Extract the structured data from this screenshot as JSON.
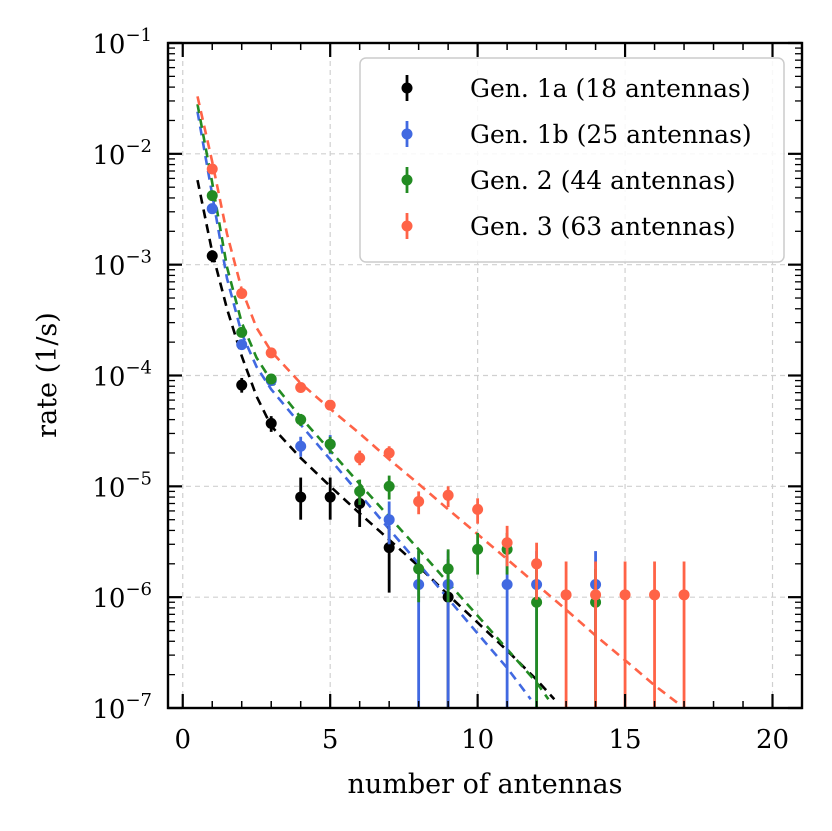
{
  "chart_data": {
    "type": "scatter",
    "title": "",
    "xlabel": "number of antennas",
    "ylabel": "rate (1/s)",
    "xlim": [
      -0.5,
      21
    ],
    "ylim": [
      1e-07,
      0.1
    ],
    "yscale": "log",
    "grid": true,
    "legend_position": "top-right",
    "xticks": [
      0,
      5,
      10,
      15,
      20
    ],
    "xtick_labels": [
      "0",
      "5",
      "10",
      "15",
      "20"
    ],
    "yticks": [
      1e-07,
      1e-06,
      1e-05,
      0.0001,
      0.001,
      0.01,
      0.1
    ],
    "ytick_labels": [
      {
        "base": "10",
        "exp": "−7"
      },
      {
        "base": "10",
        "exp": "−6"
      },
      {
        "base": "10",
        "exp": "−5"
      },
      {
        "base": "10",
        "exp": "−4"
      },
      {
        "base": "10",
        "exp": "−3"
      },
      {
        "base": "10",
        "exp": "−2"
      },
      {
        "base": "10",
        "exp": "−1"
      }
    ],
    "series": [
      {
        "name": "Gen. 1a (18 antennas)",
        "color": "#000000",
        "points": [
          {
            "x": 1,
            "y": 0.0012,
            "lo": 0.00105,
            "hi": 0.00135
          },
          {
            "x": 2,
            "y": 8.2e-05,
            "lo": 7e-05,
            "hi": 9.5e-05
          },
          {
            "x": 3,
            "y": 3.7e-05,
            "lo": 3.1e-05,
            "hi": 4.3e-05
          },
          {
            "x": 4,
            "y": 8e-06,
            "lo": 5e-06,
            "hi": 1.2e-05
          },
          {
            "x": 5,
            "y": 8e-06,
            "lo": 5e-06,
            "hi": 1.2e-05
          },
          {
            "x": 6,
            "y": 7e-06,
            "lo": 4.3e-06,
            "hi": 1e-05
          },
          {
            "x": 7,
            "y": 2.8e-06,
            "lo": 1.1e-06,
            "hi": 4.4e-06
          },
          {
            "x": 9,
            "y": 1e-06,
            "lo": 1e-07,
            "hi": 2.2e-06
          }
        ],
        "fit": [
          {
            "x": 0.5,
            "y": 0.0058
          },
          {
            "x": 1,
            "y": 0.0013
          },
          {
            "x": 1.5,
            "y": 0.0004
          },
          {
            "x": 2,
            "y": 0.00015
          },
          {
            "x": 2.5,
            "y": 6.5e-05
          },
          {
            "x": 3,
            "y": 3.5e-05
          },
          {
            "x": 4,
            "y": 1.8e-05
          },
          {
            "x": 5,
            "y": 1e-05
          },
          {
            "x": 6,
            "y": 5.7e-06
          },
          {
            "x": 7,
            "y": 3.3e-06
          },
          {
            "x": 8,
            "y": 1.9e-06
          },
          {
            "x": 9,
            "y": 1.05e-06
          },
          {
            "x": 10,
            "y": 5.9e-07
          },
          {
            "x": 11,
            "y": 3.3e-07
          },
          {
            "x": 12,
            "y": 1.8e-07
          },
          {
            "x": 12.6,
            "y": 1.2e-07
          }
        ]
      },
      {
        "name": "Gen. 1b (25 antennas)",
        "color": "#4169e1",
        "points": [
          {
            "x": 1,
            "y": 0.0032,
            "lo": 0.0029,
            "hi": 0.0035
          },
          {
            "x": 2,
            "y": 0.00019,
            "lo": 0.000175,
            "hi": 0.000205
          },
          {
            "x": 3,
            "y": 9e-05,
            "lo": 8.2e-05,
            "hi": 9.8e-05
          },
          {
            "x": 4,
            "y": 2.3e-05,
            "lo": 1.85e-05,
            "hi": 2.8e-05
          },
          {
            "x": 5,
            "y": 2.4e-05,
            "lo": 1.95e-05,
            "hi": 2.9e-05
          },
          {
            "x": 7,
            "y": 5e-06,
            "lo": 3e-06,
            "hi": 7.3e-06
          },
          {
            "x": 8,
            "y": 1.3e-06,
            "lo": 1e-07,
            "hi": 2.6e-06
          },
          {
            "x": 9,
            "y": 1.3e-06,
            "lo": 1e-07,
            "hi": 2.6e-06
          },
          {
            "x": 11,
            "y": 1.3e-06,
            "lo": 1e-07,
            "hi": 2.6e-06
          },
          {
            "x": 12,
            "y": 1.3e-06,
            "lo": 1e-07,
            "hi": 2.6e-06
          },
          {
            "x": 14,
            "y": 1.3e-06,
            "lo": 1e-07,
            "hi": 2.6e-06
          }
        ],
        "fit": [
          {
            "x": 0.5,
            "y": 0.024
          },
          {
            "x": 1,
            "y": 0.0043
          },
          {
            "x": 1.5,
            "y": 0.00075
          },
          {
            "x": 2,
            "y": 0.00024
          },
          {
            "x": 2.5,
            "y": 0.00012
          },
          {
            "x": 3,
            "y": 7.5e-05
          },
          {
            "x": 4,
            "y": 3.6e-05
          },
          {
            "x": 5,
            "y": 1.75e-05
          },
          {
            "x": 6,
            "y": 8.5e-06
          },
          {
            "x": 7,
            "y": 4.1e-06
          },
          {
            "x": 8,
            "y": 2e-06
          },
          {
            "x": 9,
            "y": 9.7e-07
          },
          {
            "x": 10,
            "y": 4.7e-07
          },
          {
            "x": 11,
            "y": 2.3e-07
          },
          {
            "x": 11.8,
            "y": 1.2e-07
          }
        ]
      },
      {
        "name": "Gen. 2 (44 antennas)",
        "color": "#228b22",
        "points": [
          {
            "x": 1,
            "y": 0.0042,
            "lo": 0.0039,
            "hi": 0.0045
          },
          {
            "x": 2,
            "y": 0.000245,
            "lo": 0.00023,
            "hi": 0.00026
          },
          {
            "x": 3,
            "y": 9.3e-05,
            "lo": 8.6e-05,
            "hi": 0.0001
          },
          {
            "x": 4,
            "y": 4e-05,
            "lo": 3.5e-05,
            "hi": 4.5e-05
          },
          {
            "x": 5,
            "y": 2.4e-05,
            "lo": 2e-05,
            "hi": 2.8e-05
          },
          {
            "x": 6,
            "y": 9e-06,
            "lo": 6.8e-06,
            "hi": 1.15e-05
          },
          {
            "x": 7,
            "y": 1e-05,
            "lo": 7.6e-06,
            "hi": 1.25e-05
          },
          {
            "x": 8,
            "y": 1.8e-06,
            "lo": 9e-07,
            "hi": 2.7e-06
          },
          {
            "x": 9,
            "y": 1.8e-06,
            "lo": 9e-07,
            "hi": 2.7e-06
          },
          {
            "x": 10,
            "y": 2.7e-06,
            "lo": 1.6e-06,
            "hi": 3.8e-06
          },
          {
            "x": 11,
            "y": 2.7e-06,
            "lo": 1.6e-06,
            "hi": 3.8e-06
          },
          {
            "x": 12,
            "y": 9e-07,
            "lo": 1e-07,
            "hi": 1.8e-06
          },
          {
            "x": 14,
            "y": 9e-07,
            "lo": 1e-07,
            "hi": 1.8e-06
          }
        ],
        "fit": [
          {
            "x": 0.5,
            "y": 0.028
          },
          {
            "x": 1,
            "y": 0.0055
          },
          {
            "x": 1.5,
            "y": 0.00095
          },
          {
            "x": 2,
            "y": 0.0003
          },
          {
            "x": 2.5,
            "y": 0.000145
          },
          {
            "x": 3,
            "y": 9e-05
          },
          {
            "x": 4,
            "y": 4.2e-05
          },
          {
            "x": 5,
            "y": 2.1e-05
          },
          {
            "x": 6,
            "y": 1.05e-05
          },
          {
            "x": 7,
            "y": 5.3e-06
          },
          {
            "x": 8,
            "y": 2.7e-06
          },
          {
            "x": 9,
            "y": 1.35e-06
          },
          {
            "x": 10,
            "y": 6.8e-07
          },
          {
            "x": 11,
            "y": 3.4e-07
          },
          {
            "x": 12,
            "y": 1.7e-07
          },
          {
            "x": 12.4,
            "y": 1.2e-07
          }
        ]
      },
      {
        "name": "Gen. 3 (63 antennas)",
        "color": "#ff6347",
        "points": [
          {
            "x": 1,
            "y": 0.0073,
            "lo": 0.0069,
            "hi": 0.0077
          },
          {
            "x": 2,
            "y": 0.00055,
            "lo": 0.00053,
            "hi": 0.00057
          },
          {
            "x": 3,
            "y": 0.00016,
            "lo": 0.000152,
            "hi": 0.000168
          },
          {
            "x": 4,
            "y": 7.8e-05,
            "lo": 7.3e-05,
            "hi": 8.3e-05
          },
          {
            "x": 5,
            "y": 5.4e-05,
            "lo": 5e-05,
            "hi": 5.8e-05
          },
          {
            "x": 6,
            "y": 1.8e-05,
            "lo": 1.55e-05,
            "hi": 2.1e-05
          },
          {
            "x": 7,
            "y": 2e-05,
            "lo": 1.75e-05,
            "hi": 2.3e-05
          },
          {
            "x": 8,
            "y": 7.3e-06,
            "lo": 5.6e-06,
            "hi": 9e-06
          },
          {
            "x": 9,
            "y": 8.3e-06,
            "lo": 6.5e-06,
            "hi": 1e-05
          },
          {
            "x": 10,
            "y": 6.2e-06,
            "lo": 4.6e-06,
            "hi": 7.8e-06
          },
          {
            "x": 11,
            "y": 3.1e-06,
            "lo": 1.9e-06,
            "hi": 4.4e-06
          },
          {
            "x": 12,
            "y": 2e-06,
            "lo": 9.5e-07,
            "hi": 3.1e-06
          },
          {
            "x": 13,
            "y": 1.05e-06,
            "lo": 1e-07,
            "hi": 2.1e-06
          },
          {
            "x": 14,
            "y": 1.05e-06,
            "lo": 1e-07,
            "hi": 2.1e-06
          },
          {
            "x": 15,
            "y": 1.05e-06,
            "lo": 1e-07,
            "hi": 2.1e-06
          },
          {
            "x": 16,
            "y": 1.05e-06,
            "lo": 1e-07,
            "hi": 2.1e-06
          },
          {
            "x": 17,
            "y": 1.05e-06,
            "lo": 1e-07,
            "hi": 2.1e-06
          }
        ],
        "fit": [
          {
            "x": 0.5,
            "y": 0.033
          },
          {
            "x": 1,
            "y": 0.0085
          },
          {
            "x": 1.5,
            "y": 0.0019
          },
          {
            "x": 2,
            "y": 0.0006
          },
          {
            "x": 2.5,
            "y": 0.00027
          },
          {
            "x": 3,
            "y": 0.000165
          },
          {
            "x": 4,
            "y": 8.5e-05
          },
          {
            "x": 5,
            "y": 5e-05
          },
          {
            "x": 6,
            "y": 3e-05
          },
          {
            "x": 7,
            "y": 1.75e-05
          },
          {
            "x": 8,
            "y": 1.05e-05
          },
          {
            "x": 9,
            "y": 6.2e-06
          },
          {
            "x": 10,
            "y": 3.7e-06
          },
          {
            "x": 11,
            "y": 2.2e-06
          },
          {
            "x": 12,
            "y": 1.3e-06
          },
          {
            "x": 13,
            "y": 7.7e-07
          },
          {
            "x": 14,
            "y": 4.5e-07
          },
          {
            "x": 15,
            "y": 2.7e-07
          },
          {
            "x": 16,
            "y": 1.6e-07
          },
          {
            "x": 16.8,
            "y": 1.1e-07
          }
        ]
      }
    ]
  }
}
